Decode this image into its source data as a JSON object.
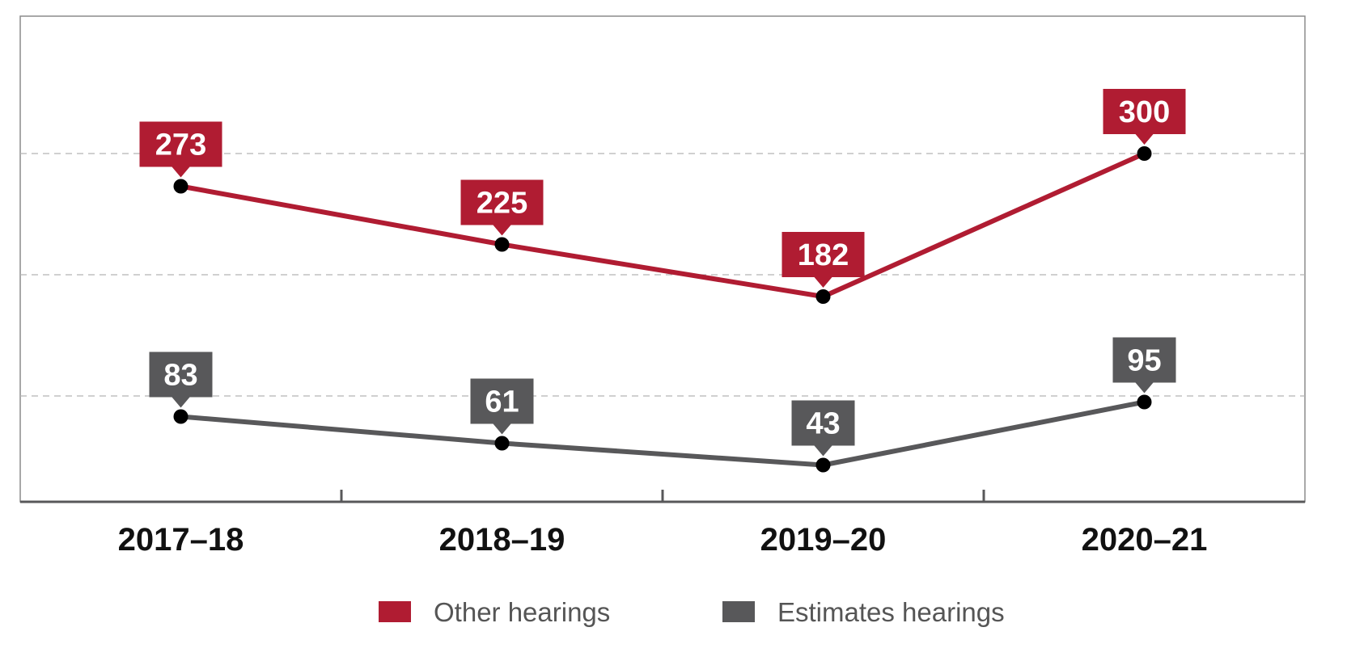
{
  "chart_data": {
    "type": "line",
    "categories": [
      "2017–18",
      "2018–19",
      "2019–20",
      "2020–21"
    ],
    "series": [
      {
        "name": "Other hearings",
        "values": [
          273,
          225,
          182,
          300
        ],
        "color": "#b01c32"
      },
      {
        "name": "Estimates hearings",
        "values": [
          83,
          61,
          43,
          95
        ],
        "color": "#58585a"
      }
    ],
    "title": "",
    "xlabel": "",
    "ylabel": "",
    "ylim": [
      0,
      300
    ],
    "grid": true,
    "legend": "bottom-center"
  }
}
